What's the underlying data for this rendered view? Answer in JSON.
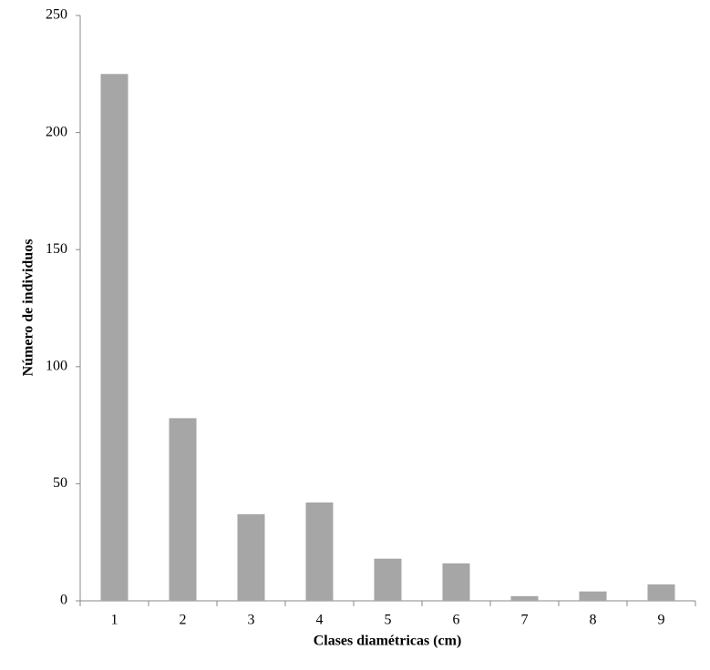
{
  "chart_data": {
    "type": "bar",
    "x_label": "Clases diamétricas (cm)",
    "y_label": "Número de individuos",
    "categories": [
      "1",
      "2",
      "3",
      "4",
      "5",
      "6",
      "7",
      "8",
      "9"
    ],
    "values": [
      225,
      78,
      37,
      42,
      18,
      16,
      2,
      4,
      7
    ],
    "color": "#a6a6a6",
    "ylim": [
      0,
      250
    ],
    "yticks": [
      0,
      50,
      100,
      150,
      200,
      250
    ],
    "grid": false
  }
}
